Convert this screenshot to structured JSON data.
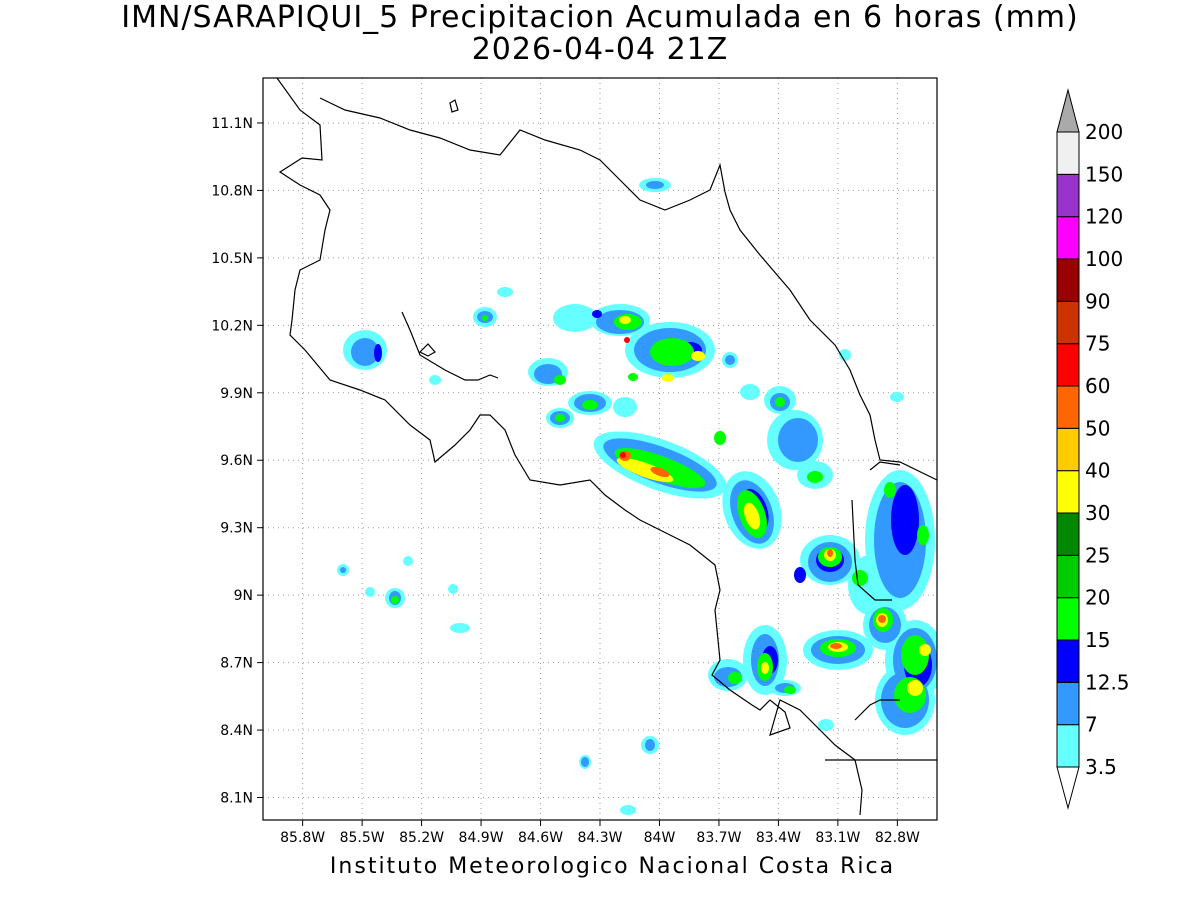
{
  "title": {
    "line1": "IMN/SARAPIQUI_5 Precipitacion Acumulada en 6 horas (mm)",
    "line2": "2026-04-04 21Z"
  },
  "credit": "Instituto Meteorologico Nacional Costa Rica",
  "map": {
    "lon_range": [
      -86.0,
      -82.6
    ],
    "lat_range": [
      8.0,
      11.3
    ],
    "lon_ticks": [
      {
        "value": -85.8,
        "label": "85.8W"
      },
      {
        "value": -85.5,
        "label": "85.5W"
      },
      {
        "value": -85.2,
        "label": "85.2W"
      },
      {
        "value": -84.9,
        "label": "84.9W"
      },
      {
        "value": -84.6,
        "label": "84.6W"
      },
      {
        "value": -84.3,
        "label": "84.3W"
      },
      {
        "value": -84.0,
        "label": "84W"
      },
      {
        "value": -83.7,
        "label": "83.7W"
      },
      {
        "value": -83.4,
        "label": "83.4W"
      },
      {
        "value": -83.1,
        "label": "83.1W"
      },
      {
        "value": -82.8,
        "label": "82.8W"
      }
    ],
    "lat_ticks": [
      {
        "value": 8.1,
        "label": "8.1N"
      },
      {
        "value": 8.4,
        "label": "8.4N"
      },
      {
        "value": 8.7,
        "label": "8.7N"
      },
      {
        "value": 9.0,
        "label": "9N"
      },
      {
        "value": 9.3,
        "label": "9.3N"
      },
      {
        "value": 9.6,
        "label": "9.6N"
      },
      {
        "value": 9.9,
        "label": "9.9N"
      },
      {
        "value": 10.2,
        "label": "10.2N"
      },
      {
        "value": 10.5,
        "label": "10.5N"
      },
      {
        "value": 10.8,
        "label": "10.8N"
      },
      {
        "value": 11.1,
        "label": "11.1N"
      }
    ],
    "grid": "dotted",
    "coastline_color": "#000000"
  },
  "colorbar": {
    "levels": [
      {
        "label": "3.5",
        "color": "#ffffff"
      },
      {
        "label": "7",
        "color": "#66ffff"
      },
      {
        "label": "12.5",
        "color": "#3399ff"
      },
      {
        "label": "15",
        "color": "#0000ff"
      },
      {
        "label": "20",
        "color": "#00ff00"
      },
      {
        "label": "25",
        "color": "#00cc00"
      },
      {
        "label": "30",
        "color": "#008800"
      },
      {
        "label": "40",
        "color": "#ffff00"
      },
      {
        "label": "50",
        "color": "#ffcc00"
      },
      {
        "label": "60",
        "color": "#ff6600"
      },
      {
        "label": "75",
        "color": "#ff0000"
      },
      {
        "label": "90",
        "color": "#cc3300"
      },
      {
        "label": "100",
        "color": "#990000"
      },
      {
        "label": "120",
        "color": "#ff00ff"
      },
      {
        "label": "150",
        "color": "#9933cc"
      },
      {
        "label": "200",
        "color": "#f0f0f0"
      }
    ],
    "bins": [
      "#66ffff",
      "#3399ff",
      "#0000ff",
      "#00ff00",
      "#00cc00",
      "#008800",
      "#ffff00",
      "#ffcc00",
      "#ff6600",
      "#ff0000",
      "#cc3300",
      "#990000",
      "#ff00ff",
      "#9933cc",
      "#f0f0f0"
    ],
    "over_color": "#aaaaaa",
    "under_color": "#ffffff"
  }
}
